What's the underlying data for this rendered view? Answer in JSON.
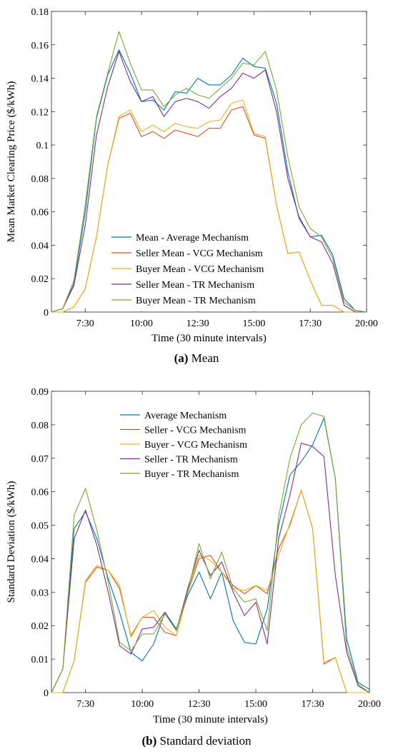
{
  "chart_data": [
    {
      "type": "line",
      "xlabel": "Time (30 minute intervals)",
      "ylabel": "Mean Market Clearing Price ($/kWh)",
      "xlim": [
        "6:00",
        "20:00"
      ],
      "ylim": [
        0,
        0.18
      ],
      "x_ticks": [
        "7:30",
        "10:00",
        "12:30",
        "15:00",
        "17:30",
        "20:00"
      ],
      "y_ticks": [
        "0",
        "0.02",
        "0.04",
        "0.06",
        "0.08",
        "0.1",
        "0.12",
        "0.14",
        "0.16",
        "0.18"
      ],
      "x": [
        "6:00",
        "6:30",
        "7:00",
        "7:30",
        "8:00",
        "8:30",
        "9:00",
        "9:30",
        "10:00",
        "10:30",
        "11:00",
        "11:30",
        "12:00",
        "12:30",
        "13:00",
        "13:30",
        "14:00",
        "14:30",
        "15:00",
        "15:30",
        "16:00",
        "16:30",
        "17:00",
        "17:30",
        "18:00",
        "18:30",
        "19:00",
        "19:30",
        "20:00"
      ],
      "legend_position": "bottom-left",
      "series": [
        {
          "name": "Mean - Average Mechanism",
          "color": "#0072BD",
          "values": [
            0,
            0.002,
            0.017,
            0.06,
            0.116,
            0.142,
            0.157,
            0.143,
            0.126,
            0.127,
            0.121,
            0.132,
            0.131,
            0.14,
            0.136,
            0.136,
            0.142,
            0.152,
            0.147,
            0.146,
            0.125,
            0.084,
            0.056,
            0.045,
            0.046,
            0.034,
            0.008,
            0.001,
            0
          ]
        },
        {
          "name": "Seller Mean - VCG Mechanism",
          "color": "#D95319",
          "values": [
            0,
            0,
            0.003,
            0.014,
            0.045,
            0.088,
            0.116,
            0.119,
            0.105,
            0.108,
            0.104,
            0.109,
            0.107,
            0.105,
            0.11,
            0.11,
            0.121,
            0.123,
            0.106,
            0.104,
            0.064,
            0.035,
            0.036,
            0.019,
            0.004,
            0.004,
            0,
            0,
            0
          ]
        },
        {
          "name": "Buyer Mean - VCG Mechanism",
          "color": "#EDB120",
          "values": [
            0,
            0,
            0.003,
            0.014,
            0.045,
            0.088,
            0.117,
            0.121,
            0.108,
            0.112,
            0.108,
            0.113,
            0.111,
            0.11,
            0.114,
            0.115,
            0.125,
            0.127,
            0.107,
            0.105,
            0.064,
            0.035,
            0.036,
            0.019,
            0.004,
            0.004,
            0,
            0,
            0
          ]
        },
        {
          "name": "Seller Mean - TR Mechanism",
          "color": "#7E2F8E",
          "values": [
            0,
            0.002,
            0.016,
            0.052,
            0.106,
            0.135,
            0.156,
            0.138,
            0.126,
            0.129,
            0.117,
            0.126,
            0.128,
            0.126,
            0.122,
            0.129,
            0.134,
            0.143,
            0.14,
            0.145,
            0.12,
            0.08,
            0.057,
            0.045,
            0.042,
            0.029,
            0.004,
            0,
            0
          ]
        },
        {
          "name": "Buyer Mean - TR Mechanism",
          "color": "#77AC30",
          "values": [
            0,
            0.002,
            0.019,
            0.064,
            0.117,
            0.143,
            0.168,
            0.149,
            0.133,
            0.133,
            0.123,
            0.13,
            0.134,
            0.13,
            0.128,
            0.134,
            0.14,
            0.149,
            0.148,
            0.156,
            0.133,
            0.093,
            0.063,
            0.05,
            0.045,
            0.032,
            0.006,
            0.001,
            0
          ]
        }
      ]
    },
    {
      "type": "line",
      "xlabel": "Time (30 minute intervals)",
      "ylabel": "Standard Deviation ($/kWh)",
      "xlim": [
        "6:00",
        "20:00"
      ],
      "ylim": [
        0,
        0.09
      ],
      "x_ticks": [
        "7:30",
        "10:00",
        "12:30",
        "15:00",
        "17:30",
        "20:00"
      ],
      "y_ticks": [
        "0",
        "0.01",
        "0.02",
        "0.03",
        "0.04",
        "0.05",
        "0.06",
        "0.07",
        "0.08",
        "0.09"
      ],
      "x": [
        "6:00",
        "6:30",
        "7:00",
        "7:30",
        "8:00",
        "8:30",
        "9:00",
        "9:30",
        "10:00",
        "10:30",
        "11:00",
        "11:30",
        "12:00",
        "12:30",
        "13:00",
        "13:30",
        "14:00",
        "14:30",
        "15:00",
        "15:30",
        "16:00",
        "16:30",
        "17:00",
        "17:30",
        "18:00",
        "18:30",
        "19:00",
        "19:30",
        "20:00"
      ],
      "legend_position": "top-left",
      "series": [
        {
          "name": "Average Mechanism",
          "color": "#0072BD",
          "values": [
            0,
            0.007,
            0.049,
            0.054,
            0.046,
            0.034,
            0.024,
            0.012,
            0.0095,
            0.0145,
            0.024,
            0.019,
            0.029,
            0.036,
            0.028,
            0.036,
            0.0215,
            0.015,
            0.0145,
            0.025,
            0.05,
            0.065,
            0.069,
            0.074,
            0.082,
            0.064,
            0.016,
            0.003,
            0.001
          ]
        },
        {
          "name": "Seller - VCG Mechanism",
          "color": "#D95319",
          "values": [
            0,
            0,
            0.0095,
            0.033,
            0.0375,
            0.0365,
            0.031,
            0.017,
            0.0225,
            0.0225,
            0.018,
            0.017,
            0.03,
            0.04,
            0.041,
            0.036,
            0.032,
            0.0295,
            0.032,
            0.0295,
            0.043,
            0.05,
            0.0605,
            0.049,
            0.0085,
            0.0105,
            0,
            0,
            0
          ]
        },
        {
          "name": "Buyer - VCG Mechanism",
          "color": "#EDB120",
          "values": [
            0,
            0,
            0.0095,
            0.0335,
            0.038,
            0.0365,
            0.032,
            0.0165,
            0.0225,
            0.0245,
            0.0195,
            0.017,
            0.031,
            0.041,
            0.0395,
            0.036,
            0.031,
            0.0305,
            0.032,
            0.0305,
            0.041,
            0.0505,
            0.0605,
            0.049,
            0.009,
            0.0105,
            0,
            0,
            0
          ]
        },
        {
          "name": "Seller - TR Mechanism",
          "color": "#7E2F8E",
          "values": [
            0,
            0.007,
            0.046,
            0.0545,
            0.044,
            0.03,
            0.014,
            0.0115,
            0.019,
            0.0195,
            0.024,
            0.0185,
            0.031,
            0.0425,
            0.035,
            0.039,
            0.03,
            0.023,
            0.027,
            0.0145,
            0.046,
            0.059,
            0.0745,
            0.0735,
            0.0705,
            0.035,
            0.012,
            0.002,
            0
          ]
        },
        {
          "name": "Buyer - TR Mechanism",
          "color": "#77AC30",
          "values": [
            0,
            0.007,
            0.053,
            0.061,
            0.0485,
            0.033,
            0.015,
            0.0125,
            0.0175,
            0.0175,
            0.0235,
            0.0185,
            0.03,
            0.0445,
            0.034,
            0.042,
            0.031,
            0.027,
            0.028,
            0.0185,
            0.0525,
            0.07,
            0.08,
            0.0835,
            0.0825,
            0.064,
            0.0135,
            0.0025,
            0
          ]
        }
      ]
    }
  ],
  "captions": [
    {
      "letter": "(a)",
      "text": " Mean"
    },
    {
      "letter": "(b)",
      "text": " Standard deviation"
    }
  ]
}
